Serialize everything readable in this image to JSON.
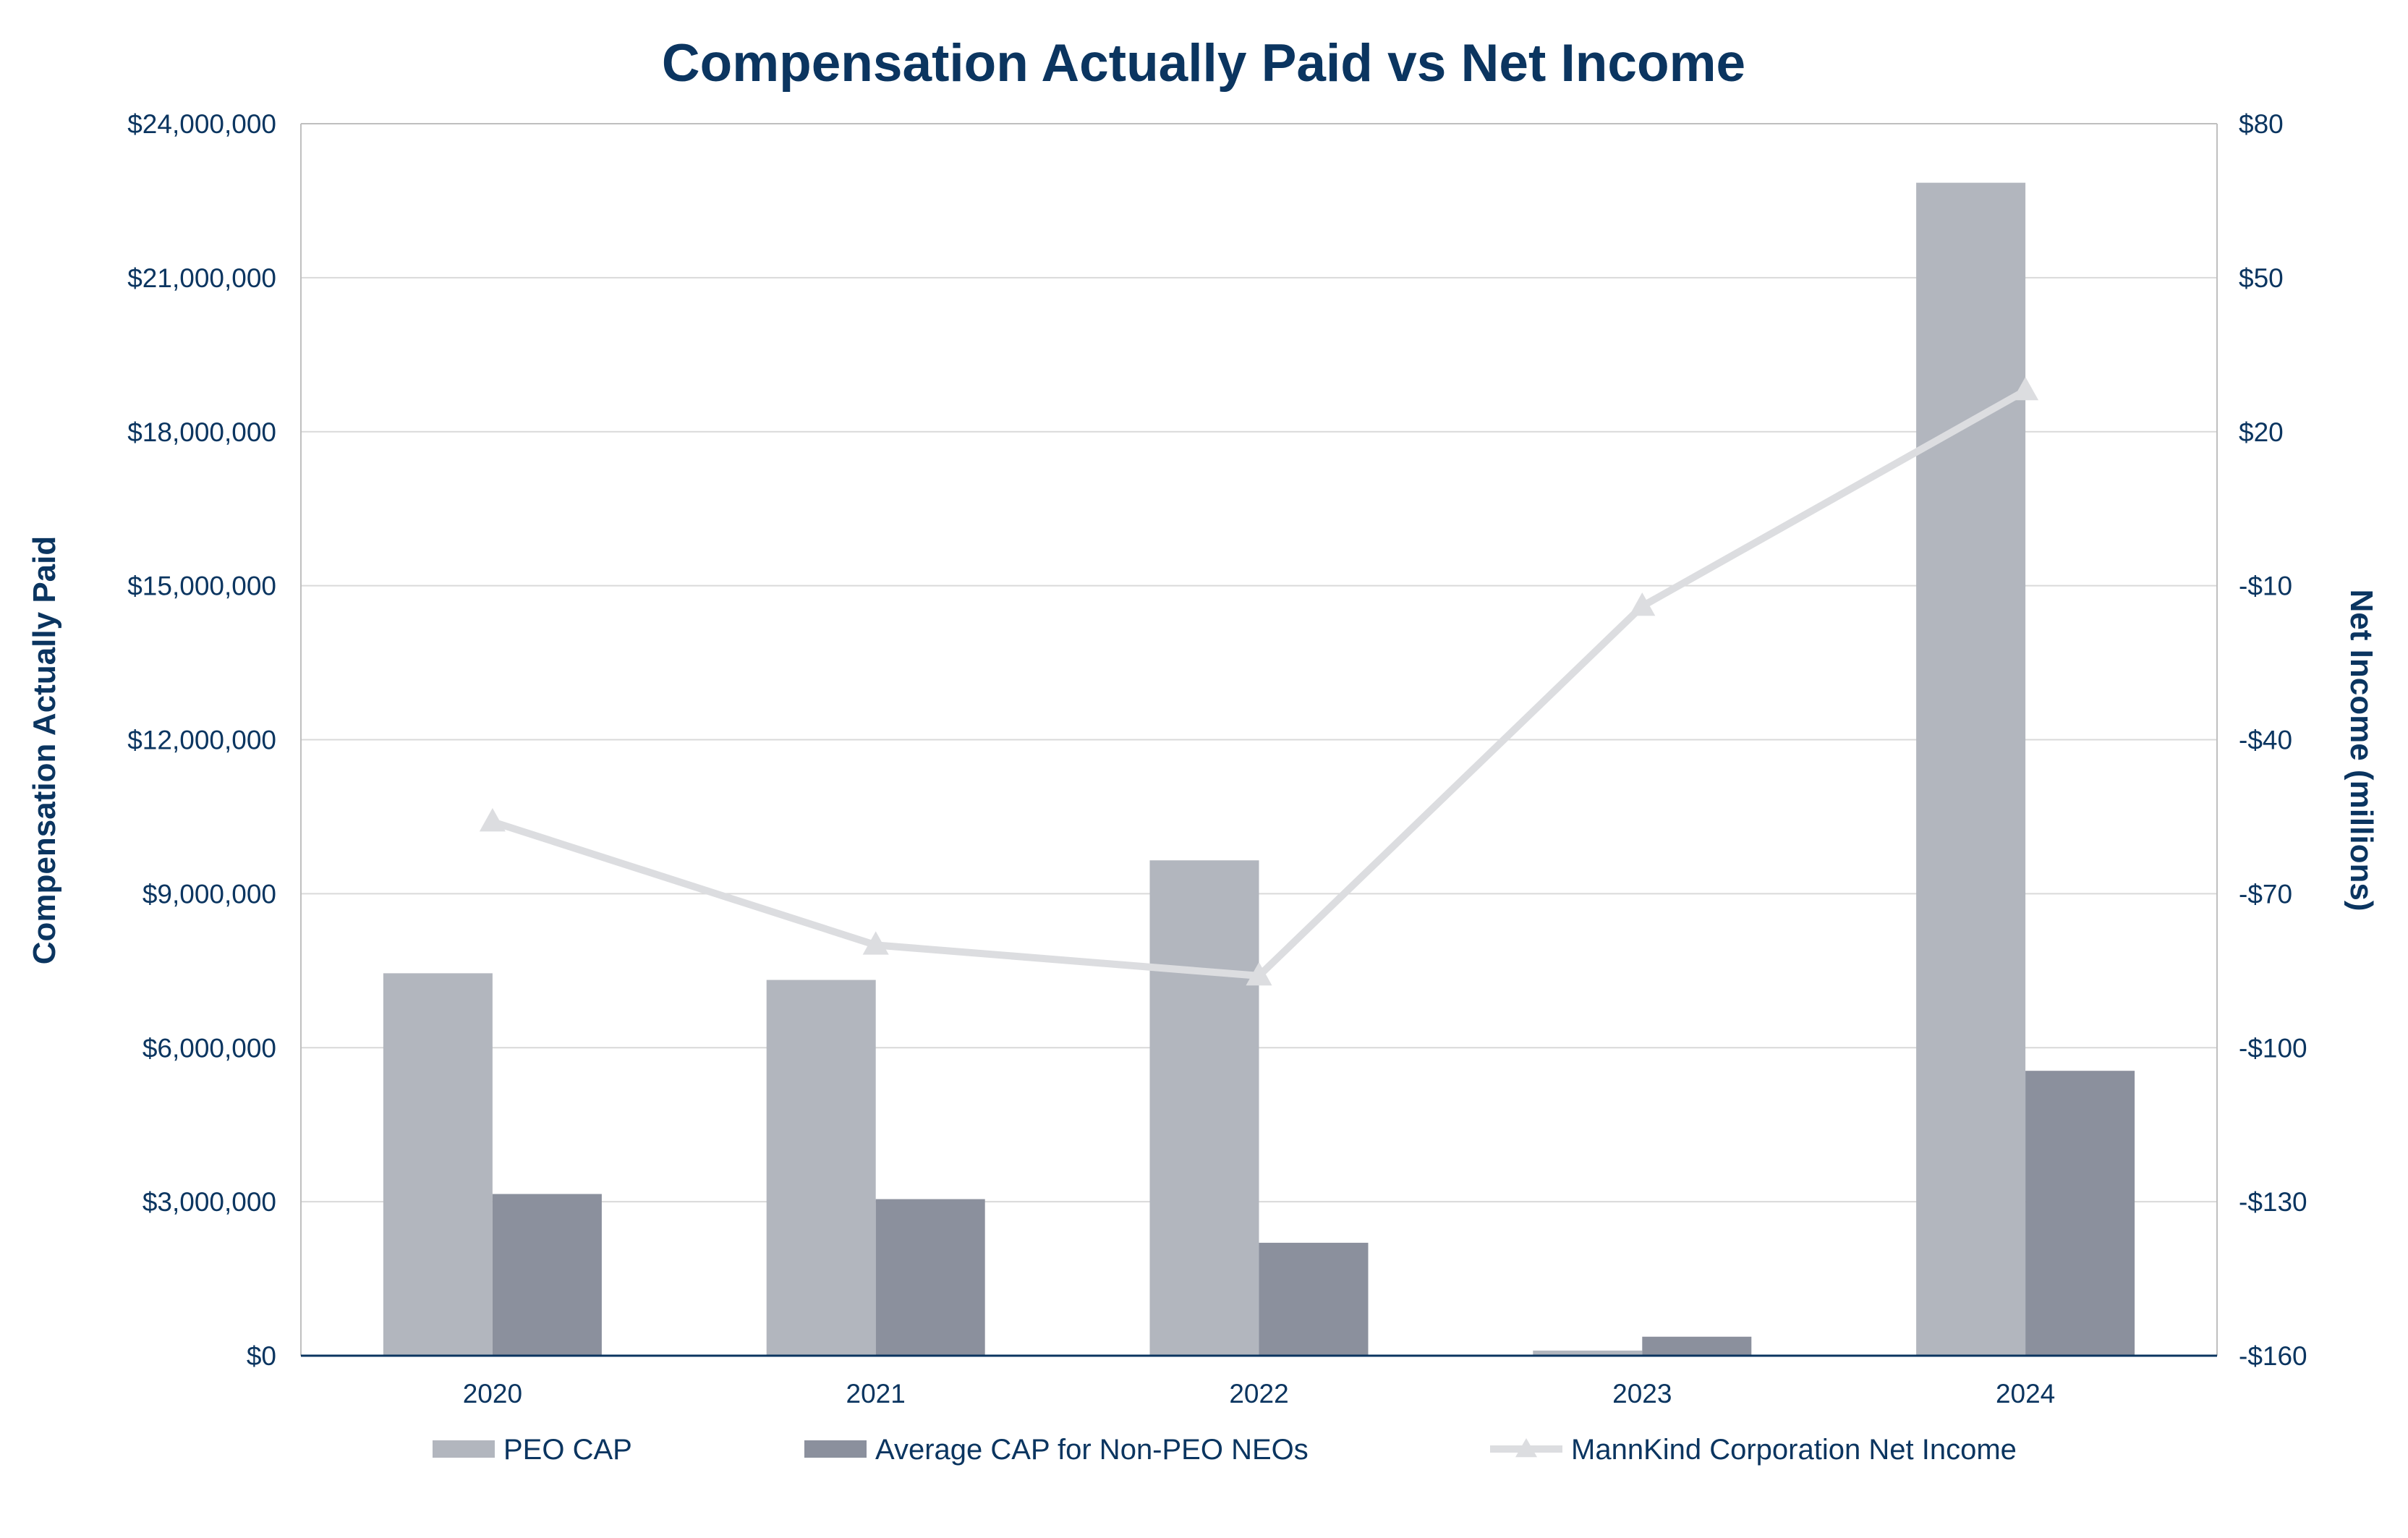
{
  "chart_data": {
    "type": "bar",
    "title": "Compensation Actually Paid vs Net Income",
    "xlabel": "",
    "ylabel": "Compensation Actually Paid",
    "y2label": "Net Income (millions)",
    "categories": [
      "2020",
      "2021",
      "2022",
      "2023",
      "2024"
    ],
    "ylim": [
      0,
      24000000
    ],
    "y_ticks": [
      0,
      3000000,
      6000000,
      9000000,
      12000000,
      15000000,
      18000000,
      21000000,
      24000000
    ],
    "y_tick_labels": [
      "$0",
      "$3,000,000",
      "$6,000,000",
      "$9,000,000",
      "$12,000,000",
      "$15,000,000",
      "$18,000,000",
      "$21,000,000",
      "$24,000,000"
    ],
    "y2lim": [
      -160,
      80
    ],
    "y2_ticks": [
      -160,
      -130,
      -100,
      -70,
      -40,
      -10,
      20,
      50,
      80
    ],
    "y2_tick_labels": [
      "-$160",
      "-$130",
      "-$100",
      "-$70",
      "-$40",
      "-$10",
      "$20",
      "$50",
      "$80"
    ],
    "grid": true,
    "legend_position": "bottom",
    "series": [
      {
        "name": "PEO CAP",
        "type": "bar",
        "axis": "left",
        "color": "#b2b6be",
        "values": [
          7450000,
          7320000,
          9650000,
          100000,
          22850000
        ]
      },
      {
        "name": "Average CAP for Non-PEO NEOs",
        "type": "bar",
        "axis": "left",
        "color": "#8b909d",
        "values": [
          3150000,
          3050000,
          2200000,
          370000,
          5550000
        ]
      },
      {
        "name": "MannKind Corporation Net Income",
        "type": "line",
        "axis": "right",
        "color": "#dcdde0",
        "marker": "triangle",
        "values": [
          -56,
          -80,
          -86,
          -14,
          28
        ]
      }
    ]
  }
}
